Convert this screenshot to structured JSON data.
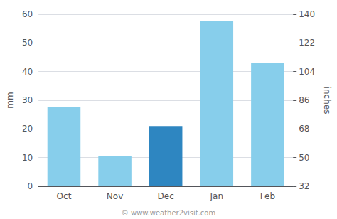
{
  "chart_data": {
    "type": "bar",
    "categories": [
      "Oct",
      "Nov",
      "Dec",
      "Jan",
      "Feb"
    ],
    "values": [
      27.5,
      10.4,
      21.0,
      57.5,
      43.0
    ],
    "colors": [
      "#87ceeb",
      "#87ceeb",
      "#2e86c1",
      "#87ceeb",
      "#87ceeb"
    ],
    "ylabel": "mm",
    "y2label": "inches",
    "ylim": [
      0,
      60
    ],
    "yticks": [
      0,
      10,
      20,
      30,
      40,
      50,
      60
    ],
    "y2lim": [
      32,
      140
    ],
    "y2ticks": [
      32,
      50,
      68,
      86,
      104,
      122,
      140
    ],
    "grid": true,
    "annotation": "© www.weather2visit.com"
  }
}
